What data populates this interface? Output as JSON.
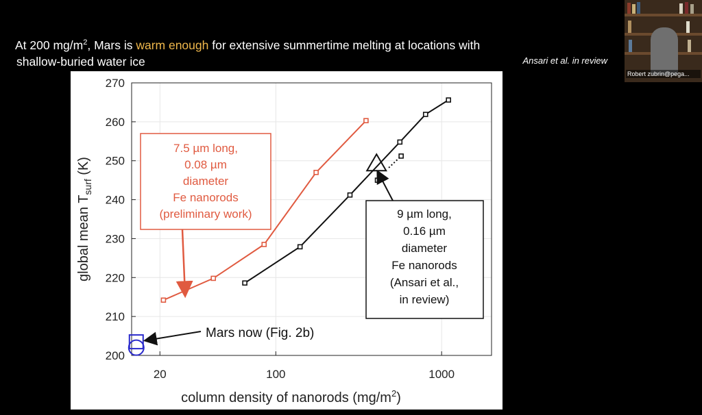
{
  "slide": {
    "headline_pre": "At 200 mg/m",
    "headline_sup": "2",
    "headline_mid": ", Mars is ",
    "headline_highlight": "warm enough",
    "headline_post": " for extensive summertime melting at locations with",
    "headline_line2": "shallow-buried water ice",
    "citation": "Ansari et al. in review",
    "highlight_color": "#f0b84c"
  },
  "video": {
    "participant_label": "Robert zubrin@pega..."
  },
  "chart_data": {
    "type": "line",
    "xscale": "log",
    "xlim": [
      13.5,
      2000
    ],
    "ylim": [
      200,
      270
    ],
    "grid": true,
    "ylabel_main": "global mean T",
    "ylabel_sub": "surf",
    "ylabel_unit": " (K)",
    "xlabel_main": "column density of nanorods (mg/m",
    "xlabel_sup": "2",
    "xlabel_end": ")",
    "xticks": [
      20,
      100,
      1000
    ],
    "xtick_labels": [
      "20",
      "100",
      "1000"
    ],
    "yticks": [
      200,
      210,
      220,
      230,
      240,
      250,
      260,
      270
    ],
    "ytick_labels": [
      "200",
      "210",
      "220",
      "230",
      "240",
      "250",
      "260",
      "270"
    ],
    "series": [
      {
        "color": "#e05a40",
        "x": [
          21,
          42,
          85,
          175,
          350
        ],
        "y": [
          214.2,
          219.8,
          228.5,
          247,
          260.3
        ]
      },
      {
        "color": "#111111",
        "x": [
          65,
          140,
          280,
          560,
          800,
          1100
        ],
        "y": [
          218.6,
          227.9,
          241.2,
          254.8,
          261.9,
          265.6
        ]
      }
    ],
    "extra_points": [
      {
        "x": 410,
        "y": 245
      },
      {
        "x": 570,
        "y": 251.2
      }
    ],
    "dotted_segment": {
      "x": [
        480,
        570
      ],
      "y": [
        248.2,
        251.2
      ]
    },
    "triangle_marker": {
      "x": 405,
      "y": 249.2,
      "color": "#111111"
    },
    "mars_now_square": {
      "x": 14.4,
      "y": 203.5,
      "color": "#2a2acc"
    },
    "mars_now_circle": {
      "x": 14.4,
      "y": 202,
      "color": "#2a2acc"
    },
    "annotations": {
      "red_label": [
        "7.5 µm long,",
        "0.08 µm",
        "diameter",
        "Fe nanorods",
        "(preliminary work)"
      ],
      "red_color": "#e05a40",
      "black_label": [
        "9 µm long,",
        "0.16 µm",
        "diameter",
        "Fe nanorods",
        "(Ansari et al.,",
        "in review)"
      ],
      "mars_now_label": "Mars now (Fig. 2b)"
    }
  }
}
